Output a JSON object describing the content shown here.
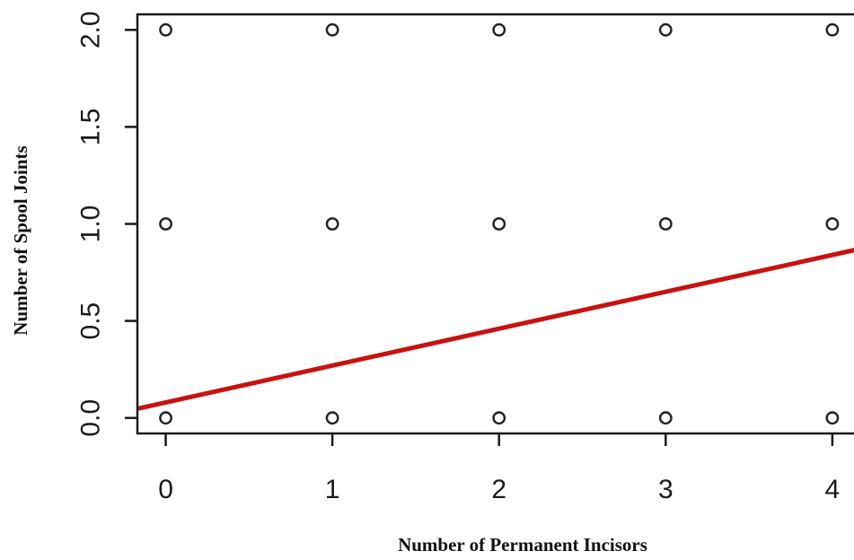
{
  "chart_data": {
    "type": "scatter",
    "title": "",
    "xlabel": "Number of Permanent Incisors",
    "ylabel": "Number of  Spool Joints",
    "xlim": [
      -0.17,
      4.13
    ],
    "ylim": [
      -0.08,
      2.08
    ],
    "x_ticks": [
      0,
      1,
      2,
      3,
      4
    ],
    "y_ticks": [
      0.0,
      0.5,
      1.0,
      1.5,
      2.0
    ],
    "x_tick_labels": [
      "0",
      "1",
      "2",
      "3",
      "4"
    ],
    "y_tick_labels": [
      "0.0",
      "0.5",
      "1.0",
      "1.5",
      "2.0"
    ],
    "grid": false,
    "points": [
      {
        "x": 0,
        "y": 2
      },
      {
        "x": 1,
        "y": 2
      },
      {
        "x": 2,
        "y": 2
      },
      {
        "x": 3,
        "y": 2
      },
      {
        "x": 4,
        "y": 2
      },
      {
        "x": 0,
        "y": 1
      },
      {
        "x": 1,
        "y": 1
      },
      {
        "x": 2,
        "y": 1
      },
      {
        "x": 3,
        "y": 1
      },
      {
        "x": 4,
        "y": 1
      },
      {
        "x": 0,
        "y": 0
      },
      {
        "x": 1,
        "y": 0
      },
      {
        "x": 2,
        "y": 0
      },
      {
        "x": 3,
        "y": 0
      },
      {
        "x": 4,
        "y": 0
      }
    ],
    "fit_line": {
      "intercept": 0.08,
      "slope": 0.19,
      "color": "#c8120f"
    },
    "point_color": "#222222"
  }
}
